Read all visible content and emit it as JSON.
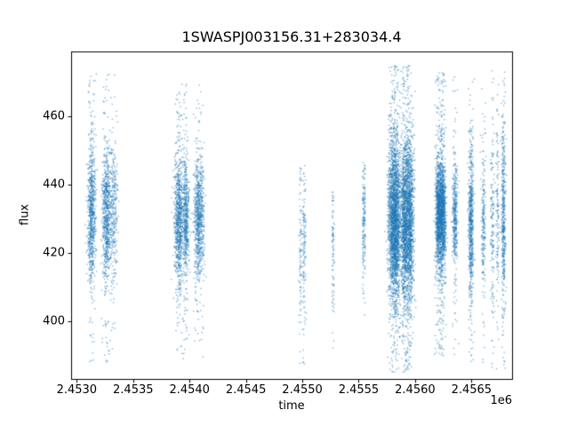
{
  "figure": {
    "background": "#ffffff",
    "frame_color": "#000000"
  },
  "chart_data": {
    "type": "scatter",
    "title": "1SWASPJ003156.31+283034.4",
    "xlabel": "time",
    "ylabel": "flux",
    "x_offset_label": "1e6",
    "xlim": [
      2452950,
      2456860
    ],
    "ylim": [
      383,
      479
    ],
    "xticks": [
      2453000,
      2453500,
      2454000,
      2454500,
      2455000,
      2455500,
      2456000,
      2456500
    ],
    "xtick_labels": [
      "2.4530",
      "2.4535",
      "2.4540",
      "2.4545",
      "2.4550",
      "2.4555",
      "2.4560",
      "2.4565"
    ],
    "yticks": [
      400,
      420,
      440,
      460
    ],
    "ytick_labels": [
      "400",
      "420",
      "440",
      "460"
    ],
    "grid": false,
    "legend": null,
    "marker_color": "#1f77b4",
    "marker_alpha": 0.55,
    "marker_size": 1.4,
    "clusters": [
      {
        "t_center": 2453200,
        "t_halfwidth": 130,
        "n": 1800,
        "columns": 7,
        "flux_mean": 431,
        "flux_sd": 10,
        "flux_min": 388,
        "flux_max": 473
      },
      {
        "t_center": 2454000,
        "t_halfwidth": 120,
        "n": 2200,
        "columns": 8,
        "flux_mean": 430,
        "flux_sd": 9,
        "flux_min": 389,
        "flux_max": 470
      },
      {
        "t_center": 2455030,
        "t_halfwidth": 55,
        "n": 220,
        "columns": 3,
        "flux_mean": 422,
        "flux_sd": 12,
        "flux_min": 386,
        "flux_max": 446
      },
      {
        "t_center": 2455275,
        "t_halfwidth": 18,
        "n": 90,
        "columns": 2,
        "flux_mean": 420,
        "flux_sd": 11,
        "flux_min": 392,
        "flux_max": 438
      },
      {
        "t_center": 2455535,
        "t_halfwidth": 22,
        "n": 180,
        "columns": 2,
        "flux_mean": 429,
        "flux_sd": 8,
        "flux_min": 400,
        "flux_max": 447
      },
      {
        "t_center": 2455880,
        "t_halfwidth": 125,
        "n": 5200,
        "columns": 12,
        "flux_mean": 430,
        "flux_sd": 12,
        "flux_min": 385,
        "flux_max": 475
      },
      {
        "t_center": 2456260,
        "t_halfwidth": 95,
        "n": 2600,
        "columns": 6,
        "flux_mean": 431,
        "flux_sd": 8,
        "flux_min": 390,
        "flux_max": 473
      },
      {
        "t_center": 2456555,
        "t_halfwidth": 75,
        "n": 900,
        "columns": 4,
        "flux_mean": 428,
        "flux_sd": 11,
        "flux_min": 388,
        "flux_max": 473
      },
      {
        "t_center": 2456750,
        "t_halfwidth": 70,
        "n": 750,
        "columns": 5,
        "flux_mean": 430,
        "flux_sd": 14,
        "flux_min": 386,
        "flux_max": 474
      }
    ]
  }
}
